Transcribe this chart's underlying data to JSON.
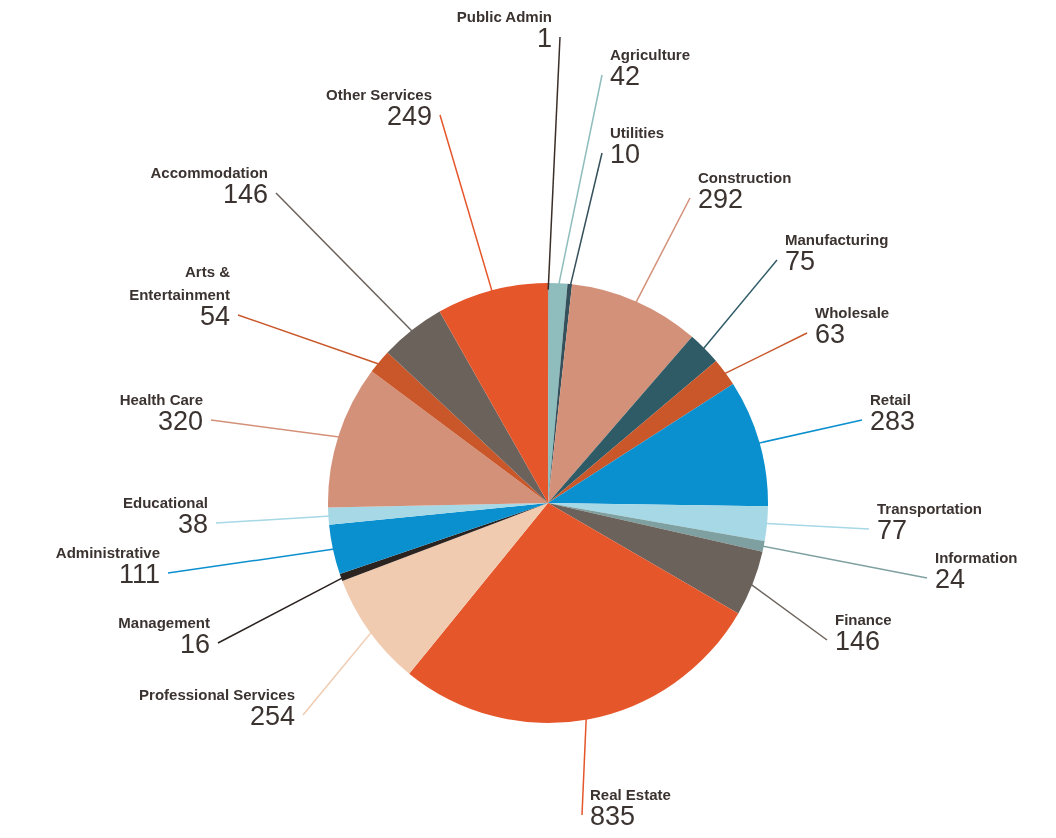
{
  "chart_data": {
    "type": "pie",
    "categories": [
      "Public Admin",
      "Agriculture",
      "Utilities",
      "Construction",
      "Manufacturing",
      "Wholesale",
      "Retail",
      "Transportation",
      "Information",
      "Finance",
      "Real Estate",
      "Professional Services",
      "Management",
      "Administrative",
      "Educational",
      "Health Care",
      "Arts & Entertainment",
      "Accommodation",
      "Other Services"
    ],
    "values": [
      1,
      42,
      10,
      292,
      75,
      63,
      283,
      77,
      24,
      146,
      835,
      254,
      16,
      111,
      38,
      320,
      54,
      146,
      249
    ],
    "colors": [
      "#3a2e28",
      "#8fbcbc",
      "#35505a",
      "#d4917a",
      "#2f5b66",
      "#c9572a",
      "#0a8fcf",
      "#a6d8e6",
      "#7fa0a0",
      "#6b625c",
      "#e5562b",
      "#f0cbb0",
      "#2a2320",
      "#0a8fcf",
      "#a6d8e6",
      "#d4917a",
      "#c9572a",
      "#6b625c",
      "#e5562b"
    ],
    "data_labels": true
  }
}
